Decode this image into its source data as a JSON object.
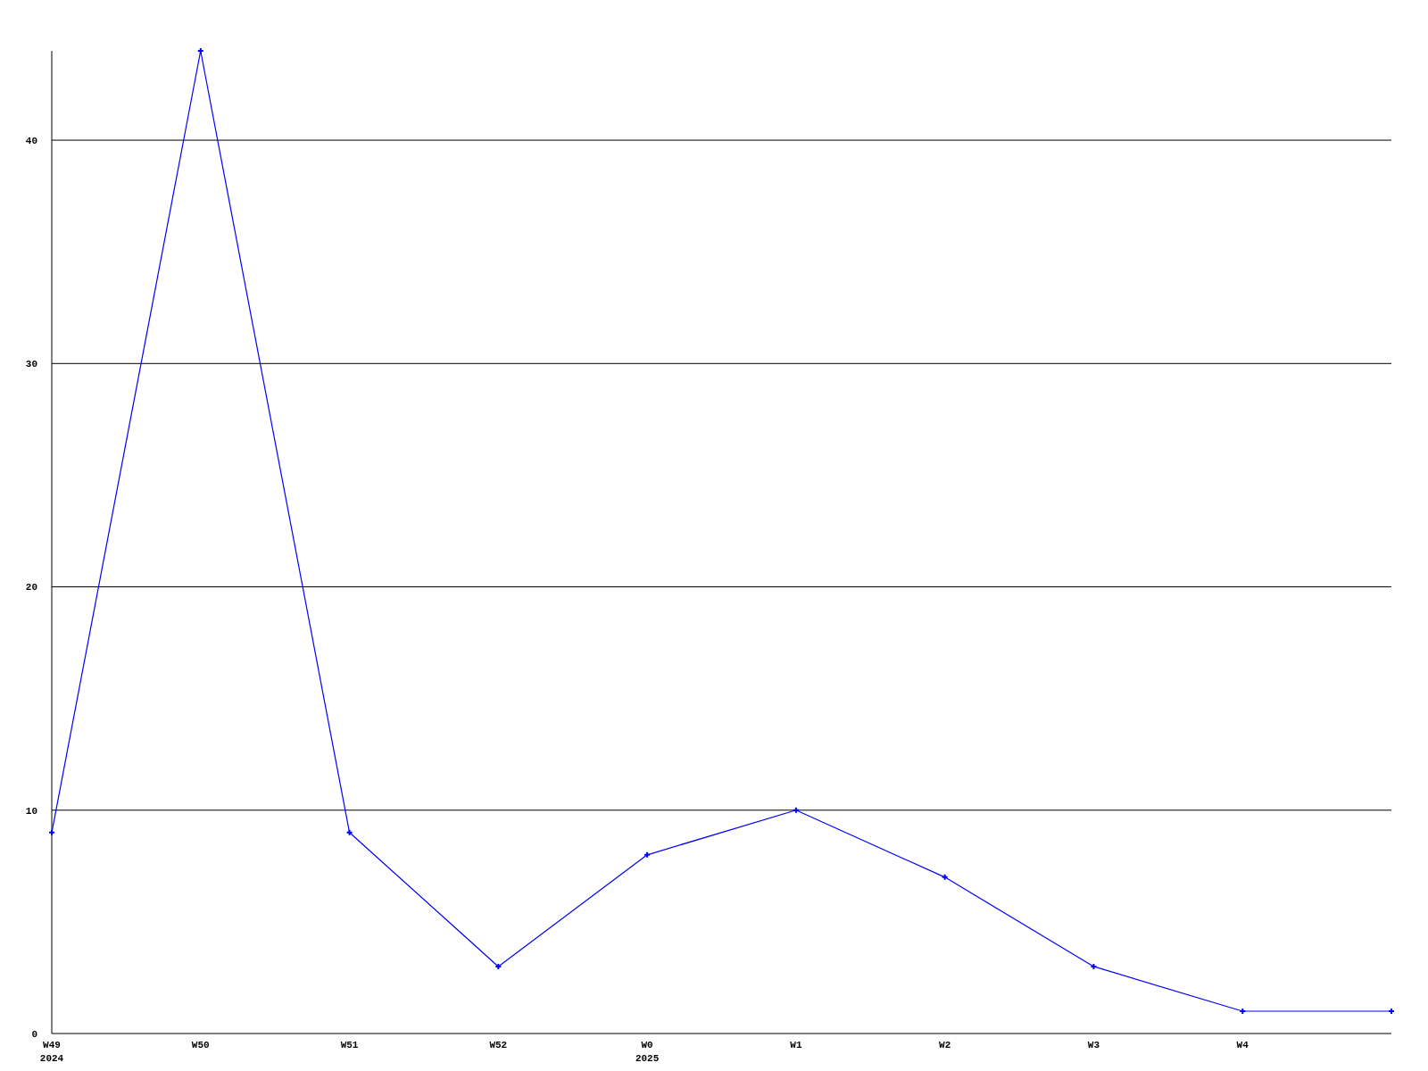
{
  "chart_data": {
    "type": "line",
    "categories": [
      "W49\n2024",
      "W50",
      "W51",
      "W52",
      "W0\n2025",
      "W1",
      "W2",
      "W3",
      "W4",
      null
    ],
    "series": [
      {
        "color": "#0000ff",
        "values": [
          9,
          44,
          9,
          3,
          8,
          10,
          7,
          3,
          1,
          1
        ]
      }
    ],
    "ylim": [
      0,
      44
    ],
    "yticks": [
      0,
      10,
      20,
      30,
      40
    ],
    "grid": "y",
    "marker": "cross",
    "line_style": "solid"
  }
}
